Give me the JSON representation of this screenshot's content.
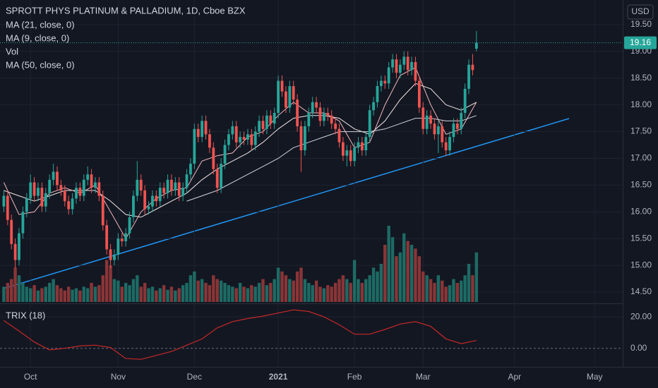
{
  "chart_data": {
    "type": "candlestick",
    "title": "SPROTT PHYS PLATINUM & PALLADIUM, 1D, Cboe BZX",
    "currency": "USD",
    "up_color": "#26a69a",
    "down_color": "#ef5350",
    "open": [
      16.1,
      16.3,
      15.85,
      15.4,
      15.1,
      15.6,
      16.0,
      16.25,
      16.55,
      16.3,
      16.45,
      16.1,
      16.35,
      16.6,
      16.75,
      16.5,
      16.4,
      16.2,
      16.05,
      16.25,
      16.45,
      16.3,
      16.6,
      16.7,
      16.45,
      16.55,
      16.3,
      15.75,
      15.3,
      15.1,
      15.2,
      15.5,
      15.45,
      15.6,
      15.9,
      16.3,
      16.6,
      16.4,
      16.05,
      16.1,
      16.3,
      16.2,
      16.45,
      16.35,
      16.6,
      16.4,
      16.55,
      16.3,
      16.45,
      16.7,
      16.9,
      17.55,
      17.4,
      17.7,
      17.45,
      17.2,
      16.8,
      16.45,
      16.9,
      17.25,
      17.45,
      17.6,
      17.3,
      17.4,
      17.35,
      17.45,
      17.25,
      17.5,
      17.7,
      17.55,
      17.8,
      17.65,
      17.85,
      18.45,
      18.25,
      17.95,
      18.35,
      18.1,
      17.6,
      17.15,
      17.6,
      17.85,
      18.05,
      17.95,
      17.7,
      17.85,
      17.8,
      17.65,
      17.55,
      17.3,
      17.05,
      17.15,
      16.95,
      17.2,
      17.3,
      17.15,
      17.4,
      17.9,
      18.05,
      18.35,
      18.45,
      18.4,
      18.7,
      18.85,
      18.6,
      18.75,
      18.9,
      18.65,
      18.8,
      18.45,
      17.95,
      17.55,
      17.8,
      17.65,
      17.45,
      17.6,
      17.3,
      17.15,
      17.4,
      17.65,
      17.55,
      17.85,
      18.3,
      18.75,
      19.05
    ],
    "high": [
      16.4,
      16.4,
      15.95,
      15.5,
      15.7,
      16.1,
      16.35,
      16.7,
      16.65,
      16.55,
      16.55,
      16.45,
      16.7,
      16.9,
      16.85,
      16.6,
      16.5,
      16.3,
      16.35,
      16.55,
      16.55,
      16.7,
      16.85,
      16.8,
      16.65,
      16.65,
      16.4,
      15.85,
      15.4,
      15.3,
      15.6,
      15.6,
      15.7,
      16.0,
      16.4,
      16.95,
      16.7,
      16.5,
      16.2,
      16.4,
      16.4,
      16.55,
      16.55,
      16.7,
      16.7,
      16.65,
      16.65,
      16.55,
      16.8,
      17.0,
      17.65,
      17.65,
      17.8,
      17.8,
      17.55,
      17.3,
      16.9,
      17.0,
      17.35,
      17.55,
      17.7,
      17.7,
      17.5,
      17.5,
      17.55,
      17.55,
      17.6,
      17.8,
      17.8,
      17.9,
      17.9,
      17.95,
      18.55,
      18.55,
      18.35,
      18.45,
      18.45,
      18.2,
      17.7,
      17.7,
      17.95,
      18.15,
      18.15,
      18.05,
      17.95,
      17.95,
      17.9,
      17.75,
      17.65,
      17.4,
      17.25,
      17.25,
      17.3,
      17.4,
      17.4,
      17.5,
      18.0,
      18.15,
      18.45,
      18.55,
      18.55,
      18.8,
      18.95,
      18.95,
      18.85,
      19.0,
      19.0,
      18.9,
      18.9,
      18.55,
      18.05,
      17.9,
      17.9,
      17.75,
      17.7,
      17.7,
      17.4,
      17.5,
      17.75,
      17.75,
      17.95,
      18.4,
      18.85,
      18.95,
      19.38
    ],
    "low": [
      16.0,
      15.75,
      15.3,
      14.95,
      15.0,
      15.5,
      15.9,
      16.15,
      16.2,
      16.2,
      16.0,
      16.0,
      16.25,
      16.5,
      16.4,
      16.3,
      16.1,
      15.95,
      15.95,
      16.15,
      16.2,
      16.2,
      16.5,
      16.35,
      16.35,
      16.2,
      15.65,
      15.2,
      14.95,
      15.0,
      15.1,
      15.35,
      15.35,
      15.5,
      15.8,
      16.2,
      16.3,
      15.95,
      15.95,
      16.0,
      16.1,
      16.1,
      16.25,
      16.25,
      16.3,
      16.3,
      16.2,
      16.2,
      16.35,
      16.6,
      16.8,
      17.3,
      17.3,
      17.35,
      17.1,
      16.7,
      16.35,
      16.35,
      16.8,
      17.15,
      17.35,
      17.2,
      17.2,
      17.25,
      17.25,
      17.15,
      17.15,
      17.4,
      17.45,
      17.45,
      17.55,
      17.55,
      17.75,
      18.15,
      17.85,
      17.85,
      18.0,
      17.5,
      16.75,
      17.05,
      17.5,
      17.75,
      17.85,
      17.6,
      17.6,
      17.7,
      17.55,
      17.45,
      17.2,
      16.95,
      16.85,
      16.85,
      16.85,
      17.1,
      17.05,
      17.05,
      17.3,
      17.8,
      17.95,
      18.25,
      18.3,
      18.3,
      18.6,
      18.5,
      18.5,
      18.65,
      18.55,
      18.55,
      18.35,
      17.85,
      17.45,
      17.45,
      17.55,
      17.35,
      17.1,
      17.2,
      17.05,
      17.05,
      17.3,
      17.45,
      17.45,
      17.75,
      18.2,
      18.55,
      19.0
    ],
    "close": [
      16.3,
      15.85,
      15.4,
      15.1,
      15.6,
      16.0,
      16.25,
      16.55,
      16.3,
      16.45,
      16.1,
      16.35,
      16.6,
      16.75,
      16.5,
      16.4,
      16.2,
      16.05,
      16.25,
      16.45,
      16.3,
      16.6,
      16.7,
      16.45,
      16.55,
      16.3,
      15.75,
      15.3,
      15.1,
      15.2,
      15.5,
      15.45,
      15.6,
      15.9,
      16.3,
      16.6,
      16.4,
      16.05,
      16.1,
      16.3,
      16.2,
      16.45,
      16.35,
      16.6,
      16.4,
      16.55,
      16.3,
      16.45,
      16.7,
      16.9,
      17.55,
      17.4,
      17.7,
      17.45,
      17.2,
      16.8,
      16.45,
      16.9,
      17.25,
      17.45,
      17.6,
      17.3,
      17.4,
      17.35,
      17.45,
      17.25,
      17.5,
      17.7,
      17.55,
      17.8,
      17.65,
      17.85,
      18.45,
      18.25,
      17.95,
      18.35,
      18.1,
      17.6,
      17.15,
      17.6,
      17.85,
      18.05,
      17.95,
      17.7,
      17.85,
      17.8,
      17.65,
      17.55,
      17.3,
      17.05,
      17.15,
      16.95,
      17.2,
      17.3,
      17.15,
      17.4,
      17.9,
      18.05,
      18.35,
      18.45,
      18.4,
      18.7,
      18.85,
      18.6,
      18.75,
      18.9,
      18.65,
      18.8,
      18.45,
      17.95,
      17.55,
      17.8,
      17.65,
      17.45,
      17.6,
      17.3,
      17.15,
      17.4,
      17.65,
      17.55,
      17.85,
      18.3,
      18.75,
      18.65,
      19.16
    ],
    "xlim": [
      -1,
      162
    ],
    "xticks": [
      {
        "value": 7,
        "label": "Oct"
      },
      {
        "value": 30,
        "label": "Nov"
      },
      {
        "value": 50,
        "label": "Dec"
      },
      {
        "value": 72,
        "label": "2021"
      },
      {
        "value": 92,
        "label": "Feb"
      },
      {
        "value": 110,
        "label": "Mar"
      },
      {
        "value": 134,
        "label": "Apr"
      },
      {
        "value": 155,
        "label": "May"
      }
    ],
    "ylim": [
      14.29,
      19.96
    ],
    "yticks": [
      {
        "value": 14.5,
        "label": "14.50"
      },
      {
        "value": 15,
        "label": "15.00"
      },
      {
        "value": 15.5,
        "label": "15.50"
      },
      {
        "value": 16,
        "label": "16.00"
      },
      {
        "value": 16.5,
        "label": "16.50"
      },
      {
        "value": 17,
        "label": "17.00"
      },
      {
        "value": 17.5,
        "label": "17.50"
      },
      {
        "value": 18,
        "label": "18.00"
      },
      {
        "value": 18.5,
        "label": "18.50"
      },
      {
        "value": 19,
        "label": "19.00"
      },
      {
        "value": 19.5,
        "label": "19.50"
      }
    ],
    "grid": true,
    "volume": {
      "name": "Vol",
      "lim": [
        0,
        100
      ],
      "values": [
        20,
        25,
        30,
        45,
        35,
        25,
        20,
        18,
        22,
        15,
        18,
        20,
        25,
        30,
        22,
        18,
        15,
        20,
        16,
        18,
        15,
        20,
        18,
        25,
        20,
        22,
        35,
        55,
        48,
        30,
        28,
        20,
        25,
        22,
        30,
        35,
        20,
        25,
        18,
        20,
        15,
        18,
        22,
        16,
        20,
        15,
        18,
        22,
        25,
        35,
        40,
        28,
        30,
        25,
        22,
        35,
        30,
        28,
        25,
        22,
        20,
        18,
        25,
        20,
        18,
        22,
        20,
        25,
        30,
        22,
        25,
        30,
        45,
        40,
        35,
        30,
        28,
        40,
        45,
        30,
        25,
        22,
        28,
        20,
        18,
        22,
        20,
        25,
        30,
        35,
        30,
        25,
        55,
        30,
        25,
        30,
        35,
        45,
        40,
        50,
        75,
        100,
        85,
        60,
        65,
        90,
        80,
        75,
        70,
        60,
        40,
        35,
        30,
        25,
        35,
        28,
        20,
        22,
        30,
        25,
        28,
        35,
        50,
        35,
        65
      ]
    },
    "series": [
      {
        "name": "MA (21, close, 0)",
        "color": "#f0e6e6",
        "x": [
          0,
          4,
          8,
          12,
          16,
          20,
          24,
          28,
          32,
          36,
          40,
          44,
          48,
          52,
          56,
          60,
          64,
          68,
          72,
          76,
          80,
          84,
          88,
          92,
          96,
          100,
          104,
          108,
          112,
          116,
          120,
          124
        ],
        "values": [
          16.4,
          16.3,
          16.2,
          16.3,
          16.4,
          16.4,
          16.4,
          16.2,
          15.95,
          15.9,
          16.05,
          16.2,
          16.35,
          16.6,
          16.8,
          16.95,
          17.1,
          17.3,
          17.55,
          17.75,
          17.8,
          17.8,
          17.75,
          17.55,
          17.45,
          17.7,
          18.1,
          18.4,
          18.3,
          18.0,
          17.9,
          18.05
        ]
      },
      {
        "name": "MA (9, close, 0)",
        "color": "#f2b8bd",
        "x": [
          0,
          4,
          8,
          12,
          16,
          20,
          24,
          28,
          32,
          36,
          40,
          44,
          48,
          52,
          56,
          60,
          64,
          68,
          72,
          76,
          80,
          84,
          88,
          92,
          96,
          100,
          104,
          108,
          112,
          116,
          120,
          124
        ],
        "values": [
          16.55,
          15.95,
          16.0,
          16.35,
          16.45,
          16.35,
          16.5,
          16.0,
          15.5,
          16.0,
          16.25,
          16.4,
          16.45,
          16.95,
          17.05,
          17.1,
          17.4,
          17.5,
          17.8,
          18.05,
          17.85,
          17.85,
          17.7,
          17.2,
          17.3,
          18.0,
          18.55,
          18.7,
          18.0,
          17.45,
          17.55,
          18.05
        ]
      },
      {
        "name": "MA (50, close, 0)",
        "color": "#d1d4dc",
        "x": [
          48,
          52,
          56,
          60,
          64,
          68,
          72,
          76,
          80,
          84,
          88,
          92,
          96,
          100,
          104,
          108,
          112,
          116,
          120,
          124
        ],
        "values": [
          16.2,
          16.3,
          16.4,
          16.55,
          16.7,
          16.85,
          17.0,
          17.2,
          17.3,
          17.4,
          17.5,
          17.5,
          17.5,
          17.55,
          17.65,
          17.75,
          17.75,
          17.7,
          17.7,
          17.8
        ]
      }
    ],
    "trix": {
      "name": "TRIX (18)",
      "color": "#c62828",
      "ylim": [
        -11.8,
        28.2
      ],
      "yticks": [
        {
          "value": 0,
          "label": "0.00"
        },
        {
          "value": 20,
          "label": "20.00"
        }
      ],
      "x": [
        0,
        4,
        8,
        12,
        16,
        20,
        24,
        28,
        32,
        36,
        40,
        44,
        48,
        52,
        56,
        60,
        64,
        68,
        72,
        76,
        80,
        84,
        88,
        92,
        96,
        100,
        104,
        108,
        112,
        116,
        120,
        124
      ],
      "values": [
        17.7,
        11,
        4,
        -1,
        0,
        1.5,
        2,
        0.5,
        -6.5,
        -7,
        -4.5,
        -2,
        2,
        6,
        13,
        17,
        19,
        20.5,
        22.5,
        24.5,
        23.5,
        20,
        15,
        9,
        9,
        12,
        15.5,
        17,
        14,
        6,
        3,
        5
      ]
    }
  }
}
